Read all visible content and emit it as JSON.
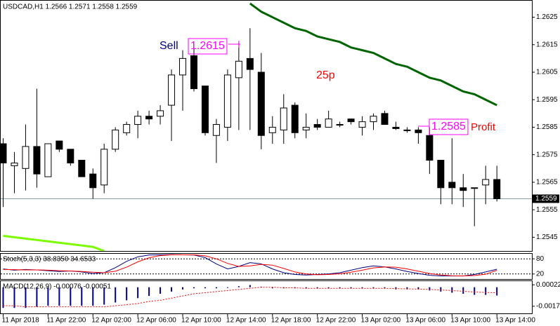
{
  "chart_data": [
    {
      "type": "candlestick",
      "title": "USDCAD,H1 1.2566 1.2571 1.2558 1.2559",
      "categories": [
        "11 Apr 2018",
        null,
        null,
        null,
        "11 Apr 22:00",
        null,
        null,
        null,
        "12 Apr 02:00",
        null,
        null,
        null,
        "12 Apr 06:00",
        null,
        null,
        null,
        "12 Apr 10:00",
        null,
        null,
        null,
        "12 Apr 14:00",
        null,
        null,
        null,
        "12 Apr 18:00",
        null,
        null,
        null,
        "12 Apr 22:00",
        null,
        null,
        null,
        "13 Apr 02:00",
        null,
        null,
        null,
        "13 Apr 06:00",
        null,
        null,
        null,
        "13 Apr 10:00",
        null,
        null,
        null,
        "13 Apr 14:00"
      ],
      "open": [
        1.2579,
        1.2571,
        1.257,
        1.2578,
        1.2567,
        1.258,
        1.2577,
        1.2573,
        1.2568,
        1.2564,
        1.2577,
        1.2583,
        1.2586,
        1.2589,
        1.2589,
        1.2593,
        1.2604,
        1.2611,
        1.26,
        1.2582,
        1.2585,
        1.2603,
        1.261,
        1.2605,
        1.2583,
        1.2584,
        1.2593,
        1.2584,
        1.2586,
        1.2585,
        1.2586,
        1.2588,
        1.2585,
        1.2587,
        1.259,
        1.2585,
        1.2584,
        1.2584,
        1.2582,
        1.2573,
        1.2565,
        1.2563,
        1.2563,
        1.2564,
        1.2566
      ],
      "high": [
        1.2581,
        1.2576,
        1.2586,
        1.2599,
        1.2579,
        1.258,
        1.2577,
        1.2573,
        1.257,
        1.2579,
        1.2585,
        1.2587,
        1.2591,
        1.2591,
        1.2593,
        1.2606,
        1.2613,
        1.2616,
        1.26,
        1.2588,
        1.2606,
        1.2616,
        1.2621,
        1.2612,
        1.2589,
        1.2597,
        1.2594,
        1.259,
        1.2588,
        1.2591,
        1.2587,
        1.2588,
        1.2589,
        1.259,
        1.2591,
        1.2587,
        1.2585,
        1.2585,
        1.2585,
        1.2573,
        1.2581,
        1.2568,
        1.2563,
        1.2571,
        1.2571
      ],
      "low": [
        1.2556,
        1.2561,
        1.2562,
        1.2563,
        1.2567,
        1.2576,
        1.2571,
        1.2567,
        1.2559,
        1.2561,
        1.2576,
        1.2582,
        1.2581,
        1.2586,
        1.2586,
        1.258,
        1.2591,
        1.2598,
        1.2582,
        1.2572,
        1.258,
        1.2584,
        1.2584,
        1.2577,
        1.2579,
        1.2579,
        1.2581,
        1.2581,
        1.2584,
        1.2585,
        1.2585,
        1.2586,
        1.2582,
        1.2584,
        1.2586,
        1.2584,
        1.2583,
        1.2579,
        1.2568,
        1.2557,
        1.2557,
        1.2556,
        1.2549,
        1.2557,
        1.2558
      ],
      "close": [
        1.2572,
        1.2572,
        1.2578,
        1.2568,
        1.2579,
        1.2577,
        1.2572,
        1.2567,
        1.2563,
        1.2577,
        1.2584,
        1.2586,
        1.2589,
        1.2588,
        1.2591,
        1.2604,
        1.261,
        1.2599,
        1.2583,
        1.2586,
        1.2604,
        1.2609,
        1.2606,
        1.2582,
        1.2585,
        1.2592,
        1.2583,
        1.2585,
        1.2585,
        1.2588,
        1.2586,
        1.2587,
        1.2587,
        1.2589,
        1.2586,
        1.25845,
        1.2584,
        1.2583,
        1.2573,
        1.2563,
        1.2563,
        1.2562,
        1.2563,
        1.2566,
        1.2559
      ],
      "overlays": [
        {
          "color": "#006400",
          "values": [
            null,
            null,
            null,
            null,
            null,
            null,
            null,
            null,
            null,
            null,
            null,
            null,
            null,
            null,
            null,
            null,
            null,
            null,
            null,
            null,
            null,
            null,
            1.263,
            1.2627,
            1.2625,
            1.2623,
            1.2621,
            1.262,
            1.2618,
            1.2617,
            1.2616,
            1.2614,
            1.2613,
            1.2612,
            1.261,
            1.2608,
            1.2607,
            1.2605,
            1.2603,
            1.2602,
            1.26,
            1.2598,
            1.2597,
            1.2595,
            1.2593
          ]
        },
        {
          "color": "#7cfc00",
          "values": [
            1.25455,
            1.2545,
            1.25445,
            1.2544,
            1.25435,
            1.2543,
            1.25425,
            1.2542,
            1.25415,
            1.254,
            null,
            null,
            null,
            null,
            null,
            null,
            null,
            null,
            null,
            null,
            null,
            null,
            null,
            null,
            null,
            null,
            null,
            null,
            null,
            null,
            null,
            null,
            null,
            null,
            null,
            null,
            null,
            null,
            null,
            null,
            null,
            null,
            null,
            null,
            null
          ]
        }
      ],
      "last_price": 1.2559,
      "ylim": [
        1.254,
        1.2631
      ],
      "yticks": [
        1.2545,
        1.2555,
        1.2565,
        1.2575,
        1.2585,
        1.2595,
        1.2605,
        1.2615,
        1.2625
      ],
      "annotations": [
        {
          "text": "Sell",
          "color": "#000080",
          "boxed": false
        },
        {
          "text": "1.2615",
          "color": "#ff00ff",
          "boxed": true
        },
        {
          "text": "25p",
          "color": "#ff0000",
          "boxed": false
        },
        {
          "text": "1.2585",
          "color": "#ff00ff",
          "boxed": true
        },
        {
          "text": "Profit",
          "color": "#ff0000",
          "boxed": false
        }
      ]
    },
    {
      "type": "line",
      "title": "Stoch(5,3,3) 38.8350 34.6533",
      "series": [
        {
          "color": "#000080",
          "values": [
            40,
            35,
            38,
            36,
            33,
            30,
            32,
            28,
            22,
            25,
            45,
            70,
            88,
            95,
            96,
            97,
            96,
            95,
            85,
            60,
            40,
            50,
            65,
            60,
            40,
            25,
            18,
            16,
            18,
            20,
            25,
            35,
            45,
            52,
            48,
            40,
            30,
            22,
            15,
            12,
            12,
            12,
            18,
            28,
            38.835
          ]
        },
        {
          "color": "#ff0000",
          "values": [
            38,
            37,
            36,
            36,
            35,
            33,
            32,
            30,
            27,
            25,
            31,
            47,
            68,
            84,
            93,
            96,
            96,
            96,
            92,
            80,
            62,
            50,
            52,
            58,
            55,
            42,
            28,
            20,
            17,
            18,
            21,
            27,
            35,
            44,
            48,
            47,
            40,
            31,
            22,
            16,
            13,
            12,
            14,
            19,
            34.6533
          ]
        }
      ],
      "ylim": [
        0,
        100
      ],
      "yticks": [
        20,
        80
      ]
    },
    {
      "type": "macd",
      "title": "MACD(12,26,9) -0.00076 -0.00051",
      "histogram": {
        "color": "#000080",
        "values": [
          -0.0019,
          -0.0019,
          -0.0019,
          -0.0018,
          -0.0017,
          -0.0017,
          -0.0017,
          -0.0017,
          -0.0017,
          -0.0016,
          -0.0014,
          -0.0012,
          -0.001,
          -0.0008,
          -0.0006,
          -0.0004,
          -0.0002,
          -0.0001,
          -0.0001,
          -0.0001,
          -5e-05,
          0.0001,
          0.0002,
          5e-05,
          -0.0001,
          -0.0001,
          -0.0001,
          -0.0001,
          -0.0001,
          -0.0001,
          -0.0001,
          -0.0001,
          -0.0001,
          -0.0001,
          -0.0001,
          -0.0002,
          -0.0002,
          -0.0002,
          -0.0003,
          -0.0004,
          -0.0005,
          -0.0006,
          -0.0007,
          -0.0007,
          -0.00076
        ]
      },
      "signal": {
        "color": "#ff0000",
        "values": [
          -0.0017,
          -0.0017,
          -0.0018,
          -0.0018,
          -0.0018,
          -0.0018,
          -0.0018,
          -0.0018,
          -0.0018,
          -0.0018,
          -0.0017,
          -0.0016,
          -0.0015,
          -0.0013,
          -0.0012,
          -0.001,
          -0.0008,
          -0.0006,
          -0.0005,
          -0.0004,
          -0.0003,
          -0.0002,
          -0.0001,
          0,
          0,
          -5e-05,
          -5e-05,
          -0.0001,
          -0.0001,
          -0.0001,
          -0.0001,
          -0.0001,
          -0.0001,
          -0.0001,
          -0.0001,
          -0.00012,
          -0.00015,
          -0.00017,
          -0.0002,
          -0.00025,
          -0.0003,
          -0.00037,
          -0.00043,
          -0.00048,
          -0.00051
        ]
      },
      "ylim": [
        -0.0024,
        0.00056
      ],
      "yticks": [
        0.00022,
        -0.00174
      ]
    }
  ]
}
